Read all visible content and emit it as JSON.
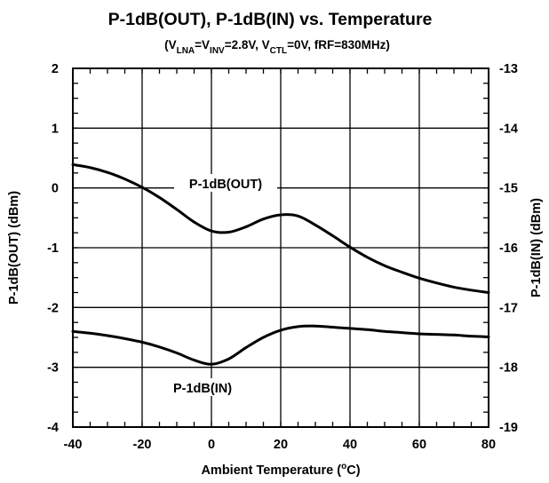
{
  "chart_data": {
    "type": "line",
    "title": "P-1dB(OUT), P-1dB(IN) vs. Temperature",
    "subtitle": {
      "open": "(V",
      "sub1": "LNA",
      "eq1": "=V",
      "sub2": "INV",
      "eq2": "=2.8V, V",
      "sub3": "CTL",
      "rest": "=0V, fRF=830MHz)"
    },
    "xlabel": {
      "main": "Ambient Temperature (",
      "sup": "o",
      "unit": "C)"
    },
    "ylabel": "P-1dB(OUT) (dBm)",
    "y2label": "P-1dB(IN) (dBm)",
    "xlim": [
      -40,
      80
    ],
    "ylim": [
      -4,
      2
    ],
    "y2lim": [
      -19,
      -13
    ],
    "x_ticks": [
      "-40",
      "-20",
      "0",
      "20",
      "40",
      "60",
      "80"
    ],
    "y_ticks": [
      "2",
      "1",
      "0",
      "-1",
      "-2",
      "-3",
      "-4"
    ],
    "y2_ticks": [
      "-13",
      "-14",
      "-15",
      "-16",
      "-17",
      "-18",
      "-19"
    ],
    "series": [
      {
        "name": "P-1dB(OUT)",
        "axis": "left",
        "x": [
          -40,
          -35,
          -30,
          -25,
          -20,
          -15,
          -10,
          -5,
          0,
          5,
          10,
          15,
          20,
          25,
          30,
          35,
          40,
          45,
          50,
          55,
          60,
          65,
          70,
          75,
          80
        ],
        "y": [
          0.39,
          0.34,
          0.26,
          0.15,
          0.01,
          -0.16,
          -0.36,
          -0.57,
          -0.72,
          -0.74,
          -0.65,
          -0.52,
          -0.45,
          -0.47,
          -0.62,
          -0.8,
          -0.99,
          -1.16,
          -1.3,
          -1.41,
          -1.51,
          -1.59,
          -1.66,
          -1.71,
          -1.75
        ]
      },
      {
        "name": "P-1dB(IN)",
        "axis": "right",
        "x": [
          -40,
          -35,
          -30,
          -25,
          -20,
          -15,
          -10,
          -5,
          0,
          5,
          10,
          15,
          20,
          25,
          30,
          35,
          40,
          45,
          50,
          55,
          60,
          65,
          70,
          75,
          80
        ],
        "y": [
          -17.4,
          -17.43,
          -17.47,
          -17.52,
          -17.58,
          -17.66,
          -17.76,
          -17.88,
          -17.95,
          -17.86,
          -17.67,
          -17.5,
          -17.38,
          -17.32,
          -17.31,
          -17.33,
          -17.35,
          -17.37,
          -17.4,
          -17.42,
          -17.44,
          -17.45,
          -17.46,
          -17.48,
          -17.49
        ]
      }
    ],
    "annotations": [
      "P-1dB(OUT)",
      "P-1dB(IN)"
    ],
    "grid": true,
    "legend": "none"
  }
}
